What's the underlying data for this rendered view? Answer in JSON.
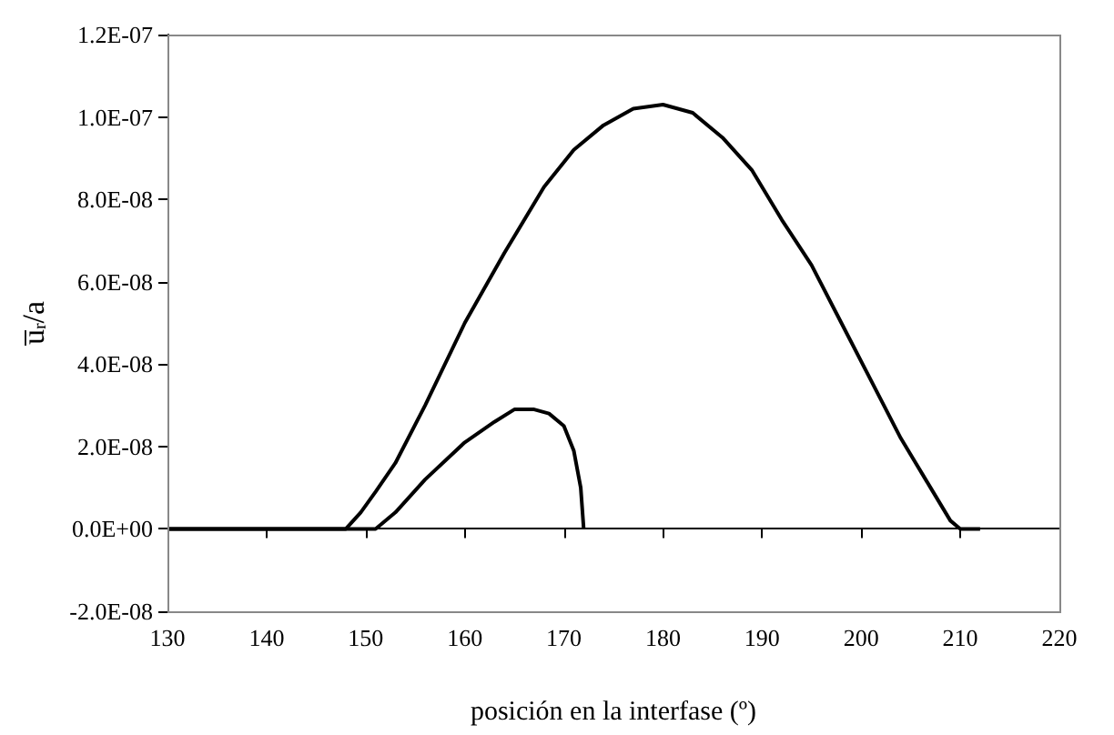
{
  "chart_data": {
    "type": "line",
    "xlabel": "posición en la interfase (º)",
    "ylabel": "u̅$_{r}$/a",
    "series": [
      {
        "color": "#000000",
        "x": [
          130,
          140,
          147,
          148,
          149.5,
          151,
          153,
          156,
          160,
          164,
          168,
          171,
          174,
          177,
          180,
          183,
          186,
          189,
          192,
          195,
          198,
          201,
          204,
          207,
          209,
          210,
          212
        ],
        "values": [
          0,
          0,
          0,
          0,
          4e-09,
          9e-09,
          1.6e-08,
          3e-08,
          5e-08,
          6.7e-08,
          8.3e-08,
          9.2e-08,
          9.8e-08,
          1.02e-07,
          1.03e-07,
          1.01e-07,
          9.5e-08,
          8.7e-08,
          7.5e-08,
          6.4e-08,
          5e-08,
          3.6e-08,
          2.2e-08,
          1e-08,
          2e-09,
          0,
          0
        ]
      },
      {
        "color": "#000000",
        "x": [
          130,
          151,
          153,
          156,
          160,
          163,
          165,
          167,
          168.5,
          170,
          171,
          171.7,
          172
        ],
        "values": [
          0,
          0,
          4e-09,
          1.2e-08,
          2.1e-08,
          2.6e-08,
          2.9e-08,
          2.9e-08,
          2.8e-08,
          2.5e-08,
          1.9e-08,
          1e-08,
          0
        ]
      }
    ],
    "xlim": [
      130,
      220
    ],
    "xticks": [
      130,
      140,
      150,
      160,
      170,
      180,
      190,
      200,
      210,
      220
    ],
    "ylim": [
      -2e-08,
      1.2e-07
    ],
    "yticks": [
      {
        "value": -2e-08,
        "label": "-2.0E-08"
      },
      {
        "value": 0,
        "label": "0.0E+00"
      },
      {
        "value": 2e-08,
        "label": "2.0E-08"
      },
      {
        "value": 4e-08,
        "label": "4.0E-08"
      },
      {
        "value": 6e-08,
        "label": "6.0E-08"
      },
      {
        "value": 8e-08,
        "label": "8.0E-08"
      },
      {
        "value": 1e-07,
        "label": "1.0E-07"
      },
      {
        "value": 1.2e-07,
        "label": "1.2E-07"
      }
    ],
    "marker": "none",
    "line_style": "solid"
  }
}
